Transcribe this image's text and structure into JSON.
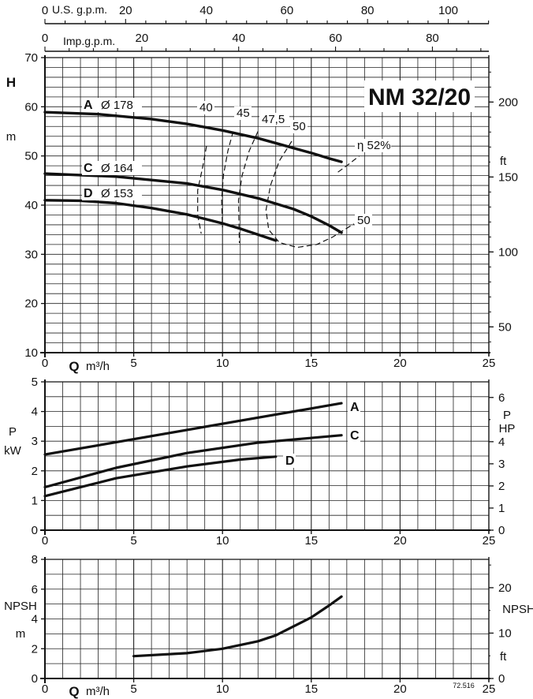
{
  "title": "NM 32/20",
  "code": "72.516",
  "top_axes": {
    "usgpm": {
      "label": "U.S. g.p.m.",
      "ticks": [
        0,
        20,
        40,
        60,
        80,
        100
      ]
    },
    "impgpm": {
      "label": "Imp.g.p.m.",
      "ticks": [
        0,
        20,
        40,
        60,
        80
      ]
    }
  },
  "chart_data": [
    {
      "type": "line",
      "name": "head",
      "x_range": [
        0,
        25
      ],
      "y_range": [
        10,
        70
      ],
      "xticks": [
        0,
        5,
        10,
        15,
        20,
        25
      ],
      "yticks": [
        10,
        20,
        30,
        40,
        50,
        60,
        70
      ],
      "xlabel": "Q",
      "xunit": "m³/h",
      "ylabel": "H",
      "yunit": "m",
      "right_axis": {
        "unit": "ft",
        "ticks": [
          50,
          100,
          150,
          200
        ]
      },
      "series": [
        {
          "name": "A",
          "diameter": "Ø 178",
          "x": [
            0,
            3,
            6,
            8,
            10,
            12,
            14,
            15,
            16,
            16.7
          ],
          "y": [
            58.9,
            58.5,
            57.5,
            56.5,
            55.2,
            53.6,
            51.6,
            50.6,
            49.5,
            48.8
          ]
        },
        {
          "name": "C",
          "diameter": "Ø 164",
          "x": [
            0,
            4,
            8,
            10,
            12,
            14,
            15,
            16,
            16.7
          ],
          "y": [
            46.4,
            45.8,
            44.4,
            43.1,
            41.4,
            39.2,
            37.7,
            35.9,
            34.4
          ]
        },
        {
          "name": "D",
          "diameter": "Ø 153",
          "x": [
            0,
            2,
            4,
            6,
            8,
            10,
            11,
            12,
            13
          ],
          "y": [
            41.0,
            40.9,
            40.4,
            39.4,
            38.1,
            36.3,
            35.2,
            34.0,
            32.8
          ]
        }
      ],
      "efficiency_curves": [
        {
          "label": "40",
          "x": [
            9.1,
            8.9,
            8.6,
            8.6,
            8.8
          ],
          "y": [
            52,
            48,
            43,
            38,
            34.2
          ]
        },
        {
          "label": "45",
          "x": [
            10.6,
            10.3,
            10.05,
            9.95,
            10.0
          ],
          "y": [
            55,
            51,
            46,
            41,
            35.5
          ]
        },
        {
          "label": "47,5",
          "x": [
            12.0,
            11.5,
            11.1,
            10.9,
            10.95
          ],
          "y": [
            55,
            51,
            46,
            41,
            32.3
          ]
        },
        {
          "label": "50",
          "x": [
            13.9,
            13.2,
            12.7,
            12.45,
            12.6,
            13.2,
            14.2,
            15.3,
            16.2,
            17.4
          ],
          "y": [
            53,
            49,
            44,
            39,
            35,
            32.4,
            31.4,
            32.0,
            33.5,
            36.2
          ]
        },
        {
          "label": "η 52%",
          "x": [
            16.5,
            17.1,
            17.7
          ],
          "y": [
            46.7,
            48.3,
            50.0
          ]
        }
      ],
      "efficiency_labels": [
        "40",
        "45",
        "47,5",
        "50",
        "η 52%",
        "50"
      ]
    },
    {
      "type": "line",
      "name": "power",
      "x_range": [
        0,
        25
      ],
      "y_range": [
        0,
        5
      ],
      "xticks": [
        0,
        5,
        10,
        15,
        20,
        25
      ],
      "yticks": [
        0,
        1,
        2,
        3,
        4,
        5
      ],
      "ylabel": "P",
      "yunit": "kW",
      "right_axis": {
        "label": "P",
        "unit": "HP",
        "ticks": [
          0,
          1,
          2,
          3,
          4,
          5,
          6
        ]
      },
      "series": [
        {
          "name": "A",
          "x": [
            0,
            16.7
          ],
          "y": [
            2.55,
            4.28
          ]
        },
        {
          "name": "C",
          "x": [
            0,
            4,
            8,
            12,
            16.7
          ],
          "y": [
            1.45,
            2.1,
            2.6,
            2.95,
            3.2
          ]
        },
        {
          "name": "D",
          "x": [
            0,
            4,
            8,
            11,
            13
          ],
          "y": [
            1.15,
            1.75,
            2.15,
            2.38,
            2.48
          ]
        }
      ]
    },
    {
      "type": "line",
      "name": "npsh",
      "x_range": [
        0,
        25
      ],
      "y_range": [
        0,
        8
      ],
      "xticks": [
        0,
        5,
        10,
        15,
        20,
        25
      ],
      "yticks": [
        0,
        2,
        4,
        6,
        8
      ],
      "xlabel": "Q",
      "xunit": "m³/h",
      "ylabel": "NPSH",
      "yunit": "m",
      "right_axis": {
        "label": "NPSH",
        "unit": "ft",
        "ticks": [
          0,
          10,
          20
        ]
      },
      "series": [
        {
          "name": "NPSH",
          "x": [
            5,
            8,
            10,
            12,
            13,
            14,
            15,
            16,
            16.7
          ],
          "y": [
            1.5,
            1.7,
            2.0,
            2.5,
            2.9,
            3.5,
            4.1,
            4.9,
            5.5
          ]
        }
      ]
    }
  ]
}
